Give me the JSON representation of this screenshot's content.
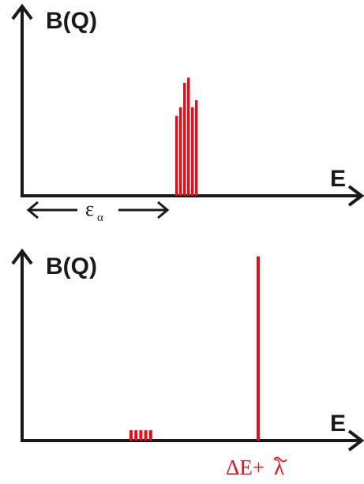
{
  "colors": {
    "axis": "#1a1a1a",
    "strength": "#e3101b"
  },
  "top_panel": {
    "y_label": "B(Q)",
    "x_label": "E",
    "gap_symbol": "ε",
    "gap_subscript": "α",
    "bars": [
      0.46,
      0.51,
      0.65,
      0.68,
      0.51,
      0.55
    ]
  },
  "bottom_panel": {
    "y_label": "B(Q)",
    "x_label": "E",
    "small_bars": [
      0.06,
      0.06,
      0.06,
      0.06,
      0.06
    ],
    "collective_peak": 0.98,
    "peak_label": "ΔE+",
    "peak_label_symbol": "λ"
  }
}
